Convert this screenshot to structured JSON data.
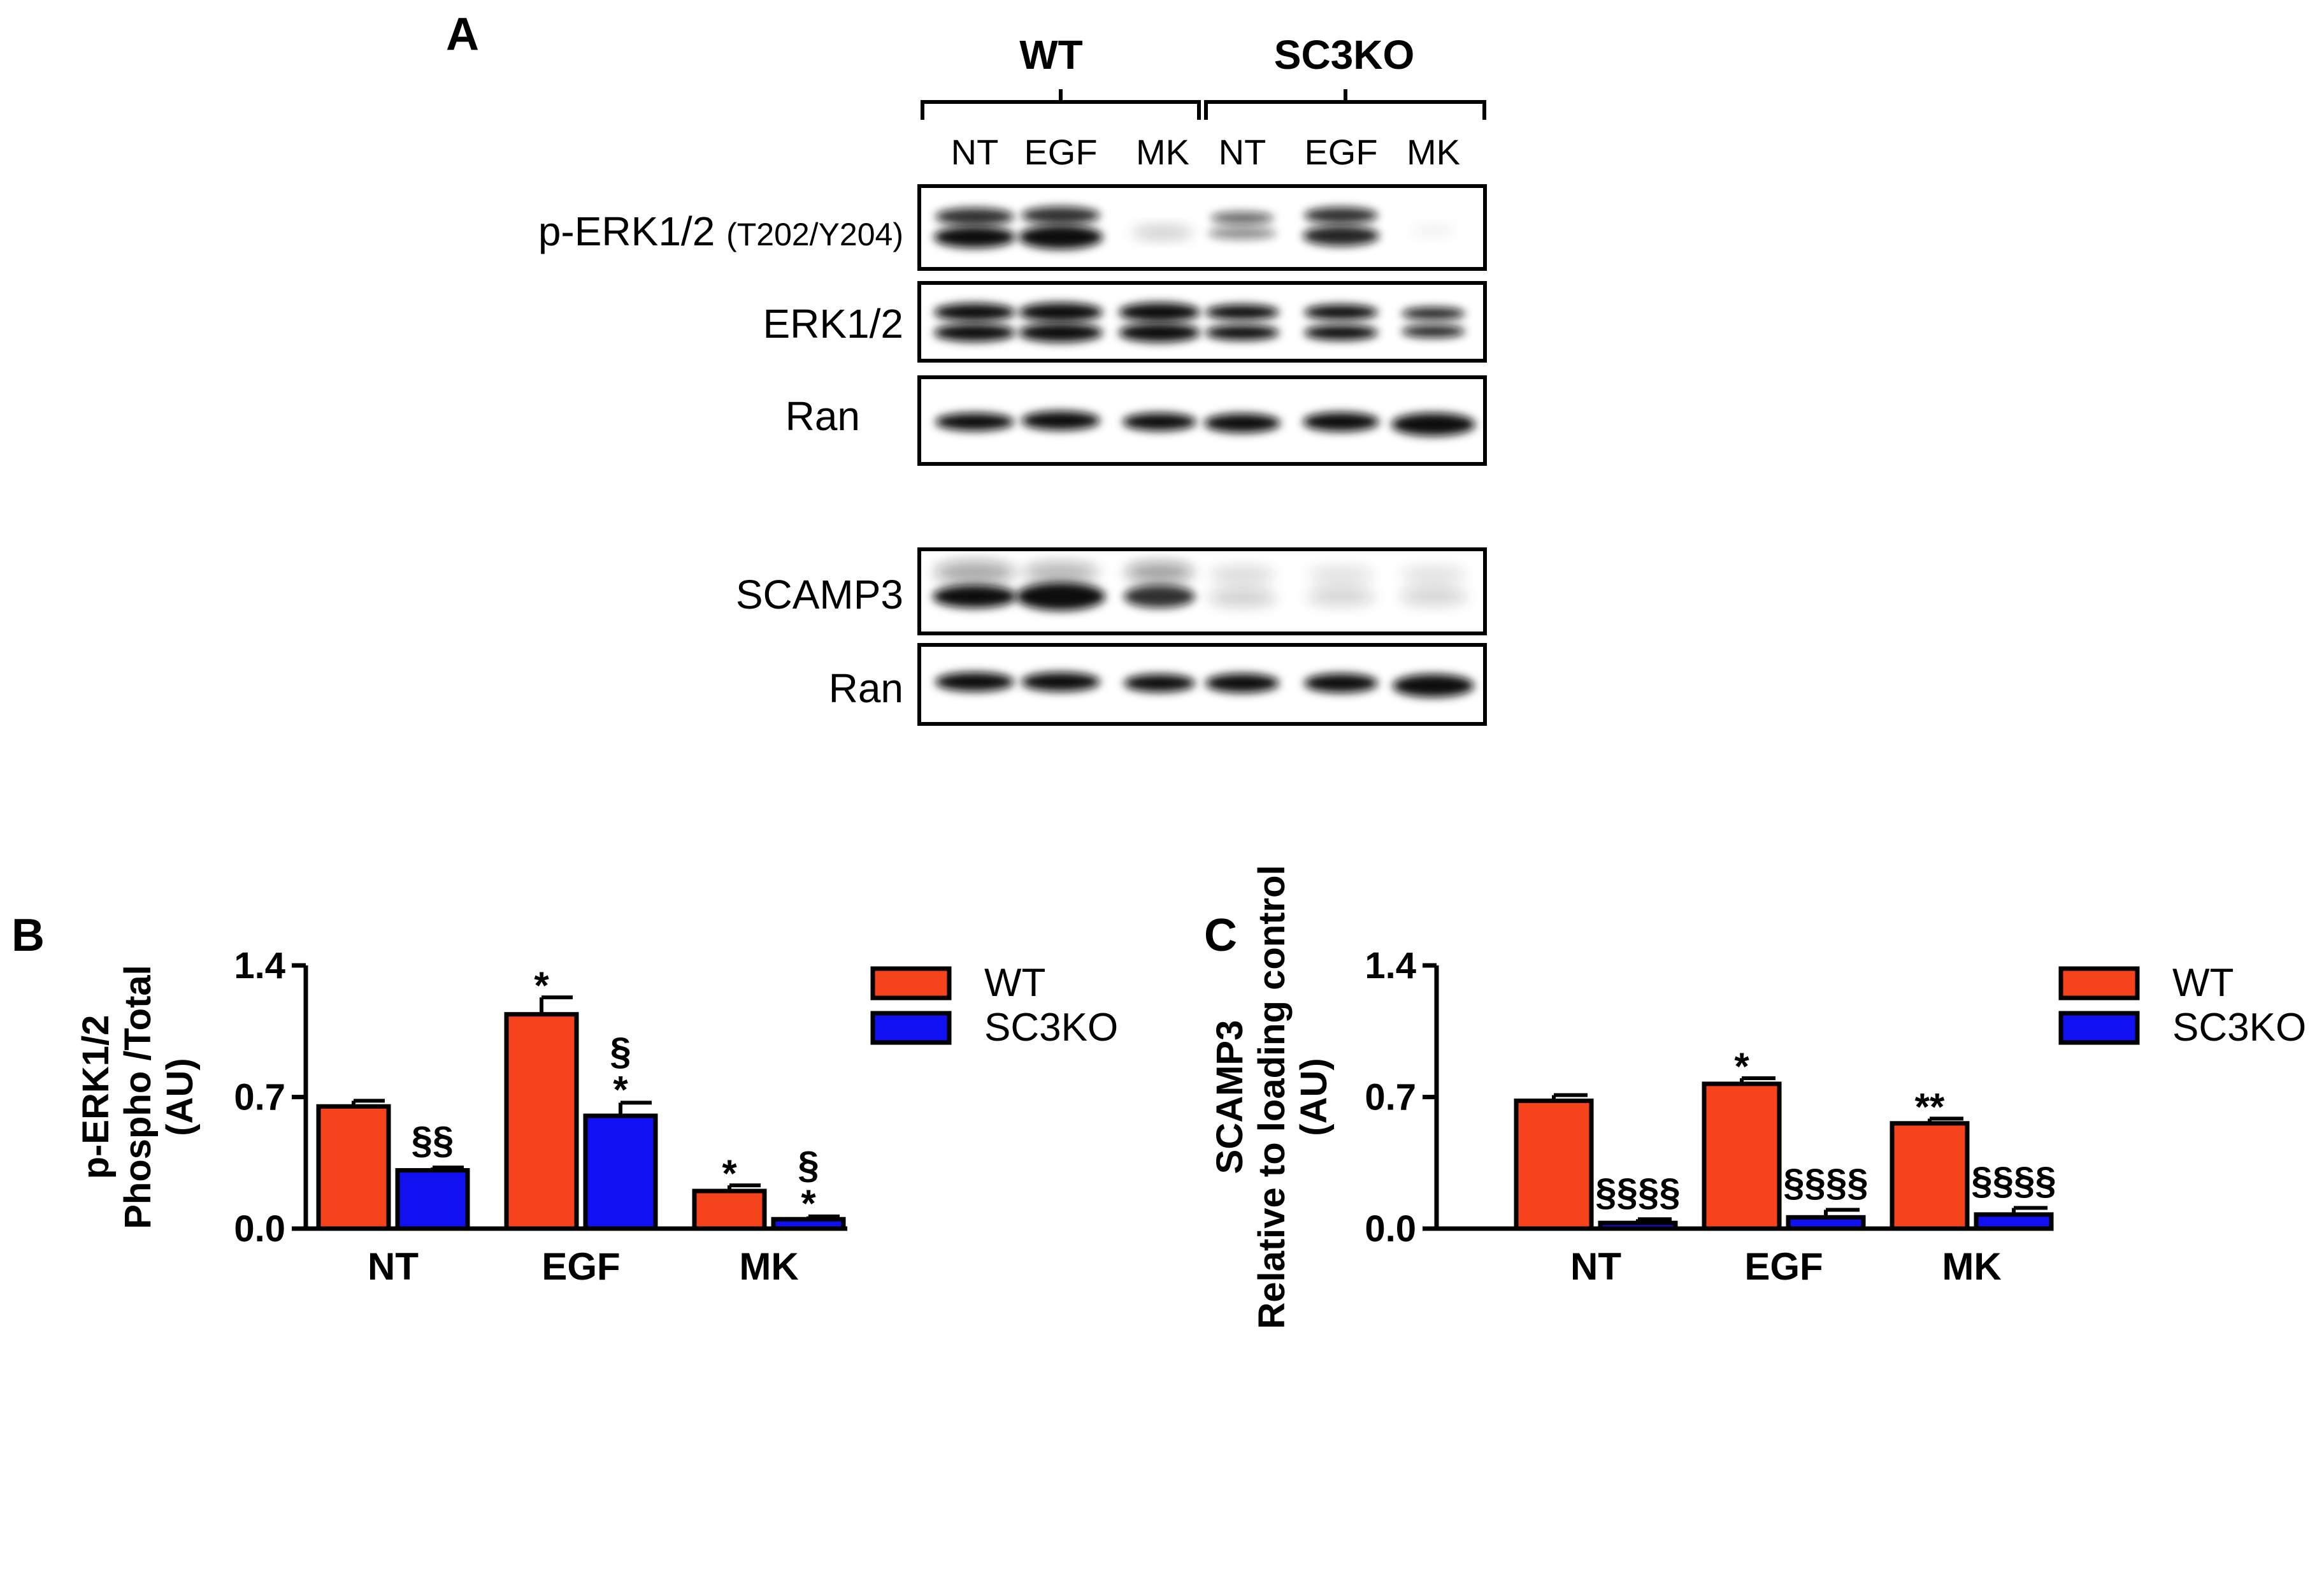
{
  "colors": {
    "wt": "#f7431b",
    "sc3ko": "#1010f0",
    "frame": "#000000"
  },
  "blot": {
    "panel_letter": "A",
    "groups": [
      "WT",
      "SC3KO"
    ],
    "lanes": [
      "NT",
      "EGF",
      "MK",
      "NT",
      "EGF",
      "MK"
    ],
    "rows": [
      {
        "label": "p-ERK1/2",
        "sublabel": "(T202/Y204)"
      },
      {
        "label": "ERK1/2",
        "sublabel": ""
      },
      {
        "label": "Ran",
        "sublabel": ""
      },
      {
        "label": "SCAMP3",
        "sublabel": ""
      },
      {
        "label": "Ran",
        "sublabel": ""
      }
    ]
  },
  "chart_data": [
    {
      "type": "bar",
      "panel_letter": "B",
      "categories": [
        "NT",
        "EGF",
        "MK"
      ],
      "ylabel_lines": [
        "p-ERK1/2",
        "Phospho /Total",
        "(AU)"
      ],
      "ylim": [
        0,
        1.4
      ],
      "yticks": [
        "0.0",
        "0.7",
        "1.4"
      ],
      "legend_position": "top-right",
      "series": [
        {
          "name": "WT",
          "values": [
            0.65,
            1.14,
            0.2
          ],
          "errors": [
            0.03,
            0.09,
            0.03
          ],
          "annotations": [
            "",
            "*",
            "*"
          ]
        },
        {
          "name": "SC3KO",
          "values": [
            0.31,
            0.6,
            0.05
          ],
          "errors": [
            0.015,
            0.07,
            0.015
          ],
          "annotations": [
            "§§",
            "*§",
            "*§"
          ]
        }
      ]
    },
    {
      "type": "bar",
      "panel_letter": "C",
      "categories": [
        "NT",
        "EGF",
        "MK"
      ],
      "ylabel_lines": [
        "SCAMP3",
        "Relative to loading control",
        "(AU)"
      ],
      "ylim": [
        0,
        1.4
      ],
      "yticks": [
        "0.0",
        "0.7",
        "1.4"
      ],
      "legend_position": "top-right",
      "series": [
        {
          "name": "WT",
          "values": [
            0.68,
            0.77,
            0.56
          ],
          "errors": [
            0.03,
            0.03,
            0.025
          ],
          "annotations": [
            "",
            "*",
            "**"
          ]
        },
        {
          "name": "SC3KO",
          "values": [
            0.03,
            0.06,
            0.075
          ],
          "errors": [
            0.02,
            0.04,
            0.035
          ],
          "annotations": [
            "§§§§",
            "§§§§",
            "§§§§"
          ]
        }
      ]
    }
  ]
}
